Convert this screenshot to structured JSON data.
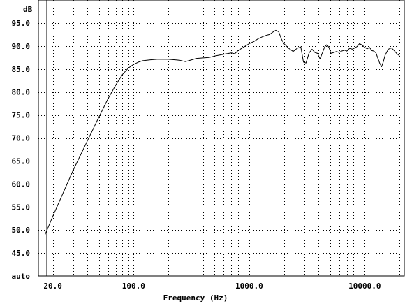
{
  "chart_data": {
    "type": "line",
    "title": "",
    "xlabel": "Frequency (Hz)",
    "ylabel": "dB",
    "xscale": "log",
    "xlim": [
      15,
      22000
    ],
    "ylim": [
      40,
      100
    ],
    "grid": true,
    "legend": "none",
    "colors": {
      "line": "#000000",
      "grid": "#000000",
      "background": "#ffffff"
    },
    "x_ticks": [
      {
        "value": 20,
        "label": "20.0"
      },
      {
        "value": 100,
        "label": "100.0"
      },
      {
        "value": 1000,
        "label": "1000.0"
      },
      {
        "value": 10000,
        "label": "10000.0"
      }
    ],
    "y_ticks": [
      {
        "value": 95,
        "label": "95.0"
      },
      {
        "value": 90,
        "label": "90.0"
      },
      {
        "value": 85,
        "label": "85.0"
      },
      {
        "value": 80,
        "label": "80.0"
      },
      {
        "value": 75,
        "label": "75.0"
      },
      {
        "value": 70,
        "label": "70.0"
      },
      {
        "value": 65,
        "label": "65.0"
      },
      {
        "value": 60,
        "label": "60.0"
      },
      {
        "value": 55,
        "label": "55.0"
      },
      {
        "value": 50,
        "label": "50.0"
      },
      {
        "value": 45,
        "label": "45.0"
      },
      {
        "value": 40,
        "label": "auto"
      }
    ],
    "series": [
      {
        "x": [
          17,
          20,
          25,
          30,
          40,
          50,
          60,
          70,
          80,
          90,
          100,
          110,
          120,
          140,
          160,
          200,
          250,
          280,
          300,
          350,
          400,
          450,
          500,
          600,
          700,
          750,
          800,
          900,
          1000,
          1100,
          1200,
          1300,
          1400,
          1500,
          1600,
          1700,
          1800,
          1900,
          2000,
          2200,
          2400,
          2600,
          2800,
          2950,
          3100,
          3300,
          3500,
          3700,
          3900,
          4100,
          4300,
          4500,
          4700,
          4900,
          5100,
          5400,
          5700,
          6000,
          6300,
          6700,
          7000,
          7400,
          7800,
          8200,
          8600,
          9000,
          9500,
          10000,
          10500,
          11000,
          11500,
          12000,
          12500,
          13000,
          13500,
          14000,
          14500,
          15000,
          16000,
          17000,
          18000,
          19000,
          20000
        ],
        "y": [
          48.8,
          53.0,
          58.5,
          63.0,
          69.5,
          74.5,
          78.5,
          81.5,
          83.8,
          85.2,
          86.0,
          86.5,
          86.8,
          87.0,
          87.1,
          87.1,
          86.9,
          86.6,
          86.8,
          87.3,
          87.4,
          87.5,
          87.8,
          88.2,
          88.5,
          88.3,
          89.0,
          89.8,
          90.5,
          91.0,
          91.6,
          92.0,
          92.3,
          92.5,
          93.0,
          93.4,
          93.1,
          91.5,
          90.5,
          89.5,
          88.8,
          89.5,
          89.8,
          86.5,
          86.3,
          88.5,
          89.3,
          88.6,
          88.4,
          87.2,
          88.5,
          89.8,
          90.3,
          89.7,
          88.4,
          88.6,
          88.8,
          88.6,
          88.9,
          89.1,
          88.9,
          89.5,
          89.3,
          89.6,
          89.9,
          90.5,
          90.2,
          89.7,
          89.4,
          89.7,
          89.0,
          88.9,
          88.5,
          87.3,
          86.2,
          85.5,
          86.6,
          88.0,
          89.3,
          89.6,
          89.0,
          88.3,
          87.9
        ]
      }
    ]
  }
}
